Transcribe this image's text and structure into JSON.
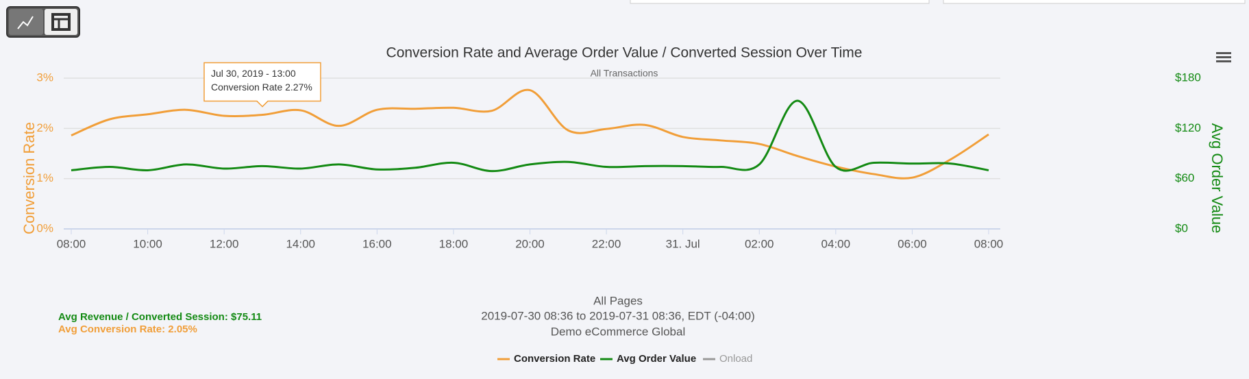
{
  "chart_data": {
    "type": "line",
    "title": "Conversion Rate and Average Order Value / Converted Session Over Time",
    "subtitle": "All Transactions",
    "ylabel": "Conversion Rate",
    "y2label": "Avg Order Value",
    "categories": [
      "08:00",
      null,
      "10:00",
      null,
      "12:00",
      null,
      "14:00",
      null,
      "16:00",
      null,
      "18:00",
      null,
      "20:00",
      null,
      "22:00",
      null,
      "31. Jul",
      null,
      "02:00",
      null,
      "04:00",
      null,
      "06:00",
      null,
      "08:00"
    ],
    "series": [
      {
        "name": "Conversion Rate",
        "color": "#f19e38",
        "values": [
          1.86,
          2.18,
          2.28,
          2.37,
          2.25,
          2.27,
          2.36,
          2.05,
          2.37,
          2.39,
          2.41,
          2.35,
          2.76,
          1.96,
          1.99,
          2.07,
          1.83,
          1.76,
          1.69,
          1.45,
          1.24,
          1.09,
          1.02,
          1.38,
          1.88
        ]
      },
      {
        "name": "Avg Order Value",
        "color": "#138a13",
        "axis": "y2",
        "values": [
          70,
          74,
          70,
          77,
          72,
          75,
          72,
          77,
          71,
          73,
          79,
          69,
          77,
          80,
          74,
          75,
          75,
          74,
          77,
          153,
          74,
          79,
          78,
          78,
          70
        ]
      }
    ],
    "legend_extra": {
      "name": "Onload",
      "color": "#999999"
    },
    "ylim": [
      0,
      3
    ],
    "yticks": [
      {
        "value": 0,
        "label": "0%"
      },
      {
        "value": 1,
        "label": "1%"
      },
      {
        "value": 2,
        "label": "2%"
      },
      {
        "value": 3,
        "label": "3%"
      }
    ],
    "y2lim": [
      0,
      180
    ],
    "y2ticks": [
      {
        "value": 0,
        "label": "$0"
      },
      {
        "value": 60,
        "label": "$60"
      },
      {
        "value": 120,
        "label": "$120"
      },
      {
        "value": 180,
        "label": "$180"
      }
    ],
    "grid": true,
    "tooltip": [
      "Jul 30, 2019 - 13:00",
      "Conversion Rate 2.27%"
    ],
    "footer": [
      "All Pages",
      "2019-07-30 08:36 to 2019-07-31 08:36, EDT (-04:00)",
      "Demo eCommerce Global"
    ],
    "stats": [
      "Avg Revenue / Converted Session: $75.11",
      "Avg Conversion Rate: 2.05%"
    ]
  }
}
